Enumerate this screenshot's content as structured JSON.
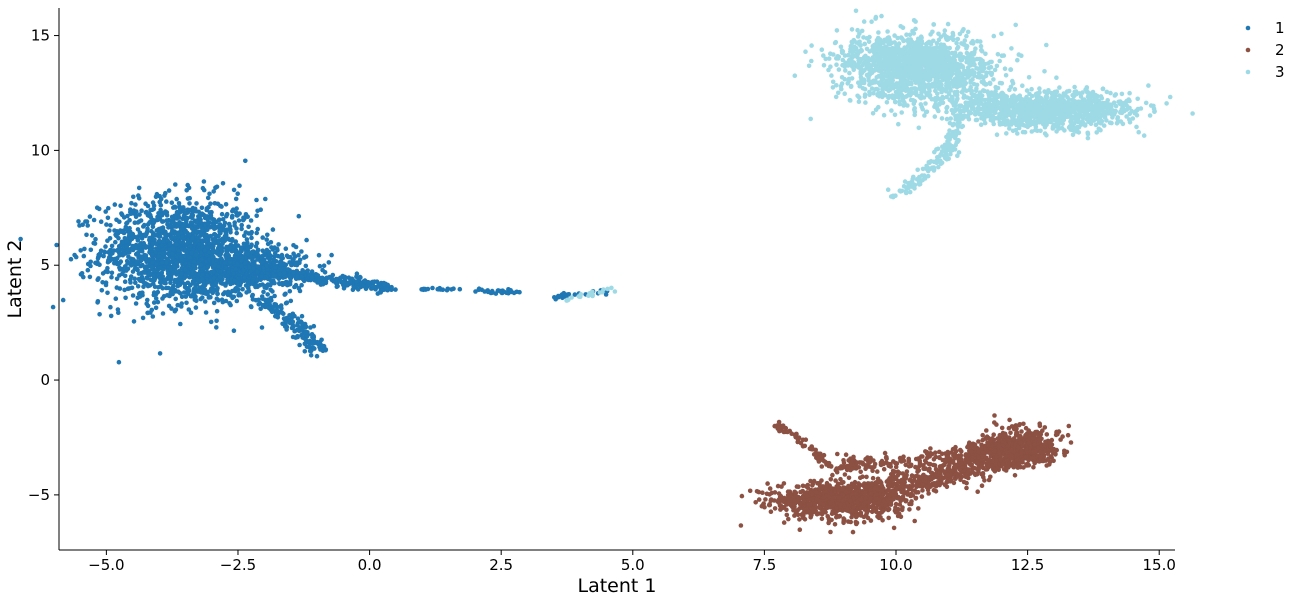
{
  "chart_data": {
    "type": "scatter",
    "title": "",
    "xlabel": "Latent 1",
    "ylabel": "Latent 2",
    "xlim": [
      -5.9,
      15.3
    ],
    "ylim": [
      -7.4,
      16.2
    ],
    "xticks": [
      -5.0,
      -2.5,
      0.0,
      2.5,
      5.0,
      7.5,
      10.0,
      12.5,
      15.0
    ],
    "xtick_labels": [
      "−5.0",
      "−2.5",
      "0.0",
      "2.5",
      "5.0",
      "7.5",
      "10.0",
      "12.5",
      "15.0"
    ],
    "yticks": [
      -5,
      0,
      5,
      10,
      15
    ],
    "ytick_labels": [
      "−5",
      "0",
      "5",
      "10",
      "15"
    ],
    "grid": false,
    "legend": {
      "placement": "top-right-outside"
    },
    "series": [
      {
        "name": "1",
        "color": "#1f77b4",
        "clusters": [
          {
            "shape": "blob",
            "cx": -3.6,
            "cy": 5.6,
            "sx": 0.75,
            "sy": 1.15,
            "n": 1600
          },
          {
            "shape": "blob",
            "cx": -2.3,
            "cy": 4.8,
            "sx": 0.55,
            "sy": 0.55,
            "n": 500
          },
          {
            "shape": "path",
            "points": [
              [
                -2.6,
                5.0
              ],
              [
                -1.5,
                4.6
              ],
              [
                -0.6,
                4.35
              ],
              [
                0.4,
                3.95
              ]
            ],
            "spread": 0.12,
            "n": 320
          },
          {
            "shape": "path",
            "points": [
              [
                -2.2,
                3.7
              ],
              [
                -1.6,
                2.8
              ],
              [
                -0.9,
                1.25
              ]
            ],
            "spread": 0.12,
            "n": 150
          },
          {
            "shape": "path",
            "points": [
              [
                1.0,
                3.95
              ],
              [
                1.7,
                3.95
              ]
            ],
            "spread": 0.03,
            "n": 20
          },
          {
            "shape": "path",
            "points": [
              [
                2.0,
                3.9
              ],
              [
                2.9,
                3.8
              ]
            ],
            "spread": 0.05,
            "n": 30
          },
          {
            "shape": "path",
            "points": [
              [
                3.5,
                3.65
              ],
              [
                4.5,
                3.9
              ]
            ],
            "spread": 0.06,
            "n": 25
          }
        ]
      },
      {
        "name": "2",
        "color": "#8c5143",
        "clusters": [
          {
            "shape": "blob",
            "cx": 8.9,
            "cy": -5.3,
            "sx": 0.6,
            "sy": 0.4,
            "n": 700
          },
          {
            "shape": "blob",
            "cx": 12.4,
            "cy": -2.9,
            "sx": 0.35,
            "sy": 0.4,
            "n": 500
          },
          {
            "shape": "path",
            "points": [
              [
                8.2,
                -5.3
              ],
              [
                9.8,
                -4.8
              ],
              [
                11.0,
                -4.1
              ],
              [
                12.2,
                -3.0
              ]
            ],
            "spread": 0.28,
            "n": 800
          },
          {
            "shape": "path",
            "points": [
              [
                8.8,
                -3.7
              ],
              [
                10.3,
                -3.6
              ],
              [
                11.8,
                -3.0
              ]
            ],
            "spread": 0.18,
            "n": 200
          },
          {
            "shape": "path",
            "points": [
              [
                7.7,
                -1.9
              ],
              [
                8.4,
                -2.9
              ],
              [
                8.7,
                -3.8
              ]
            ],
            "spread": 0.06,
            "n": 60
          }
        ]
      },
      {
        "name": "3",
        "color": "#9edae5",
        "clusters": [
          {
            "shape": "blob",
            "cx": 10.4,
            "cy": 13.6,
            "sx": 0.7,
            "sy": 0.8,
            "n": 1200
          },
          {
            "shape": "blob",
            "cx": 12.9,
            "cy": 11.7,
            "sx": 0.8,
            "sy": 0.4,
            "n": 800
          },
          {
            "shape": "path",
            "points": [
              [
                9.3,
                14.3
              ],
              [
                10.6,
                13.8
              ],
              [
                11.4,
                13.4
              ]
            ],
            "spread": 0.35,
            "n": 400
          },
          {
            "shape": "path",
            "points": [
              [
                11.2,
                12.3
              ],
              [
                12.2,
                11.8
              ],
              [
                14.0,
                12.0
              ]
            ],
            "spread": 0.35,
            "n": 400
          },
          {
            "shape": "path",
            "points": [
              [
                11.2,
                11.5
              ],
              [
                11.0,
                10.0
              ],
              [
                10.3,
                8.5
              ],
              [
                10.0,
                8.0
              ]
            ],
            "spread": 0.08,
            "n": 150
          },
          {
            "shape": "path",
            "points": [
              [
                3.7,
                3.5
              ],
              [
                4.6,
                3.95
              ]
            ],
            "spread": 0.05,
            "n": 20
          }
        ]
      }
    ]
  }
}
